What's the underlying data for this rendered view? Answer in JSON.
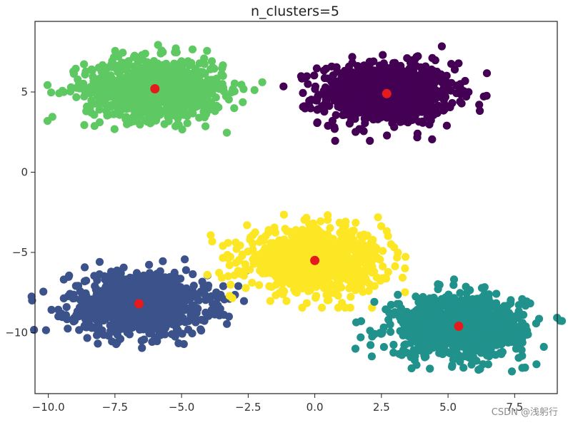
{
  "chart_data": {
    "type": "scatter",
    "title": "n_clusters=5",
    "xlabel": "",
    "ylabel": "",
    "xlim": [
      -10.5,
      9.1
    ],
    "ylim": [
      -13.8,
      9.4
    ],
    "xticks": [
      -10.0,
      -7.5,
      -5.0,
      -2.5,
      0.0,
      2.5,
      5.0,
      7.5
    ],
    "xtick_labels": [
      "−10.0",
      "−7.5",
      "−5.0",
      "−2.5",
      "0.0",
      "2.5",
      "5.0",
      "7.5"
    ],
    "yticks": [
      5,
      0,
      -5,
      -10
    ],
    "ytick_labels": [
      "5",
      "0",
      "−5",
      "−10"
    ],
    "grid": false,
    "clusters": [
      {
        "label": 0,
        "color": "#440154",
        "center": [
          2.7,
          4.9
        ],
        "spread": [
          1.25,
          0.95
        ],
        "n": 900
      },
      {
        "label": 1,
        "color": "#5ec962",
        "center": [
          -6.0,
          5.2
        ],
        "spread": [
          1.3,
          0.95
        ],
        "n": 900
      },
      {
        "label": 2,
        "color": "#3b528b",
        "center": [
          -6.6,
          -8.2
        ],
        "spread": [
          1.3,
          0.95
        ],
        "n": 900
      },
      {
        "label": 3,
        "color": "#fde725",
        "center": [
          0.0,
          -5.5
        ],
        "spread": [
          1.3,
          0.95
        ],
        "n": 900
      },
      {
        "label": 4,
        "color": "#21918c",
        "center": [
          5.4,
          -9.6
        ],
        "spread": [
          1.25,
          0.95
        ],
        "n": 900
      }
    ],
    "centroids": {
      "color": "#e41a1c",
      "points": [
        [
          2.7,
          4.9
        ],
        [
          -6.0,
          5.2
        ],
        [
          -6.6,
          -8.2
        ],
        [
          0.0,
          -5.5
        ],
        [
          5.4,
          -9.6
        ]
      ]
    }
  },
  "watermark": "CSDN @浅躬行"
}
